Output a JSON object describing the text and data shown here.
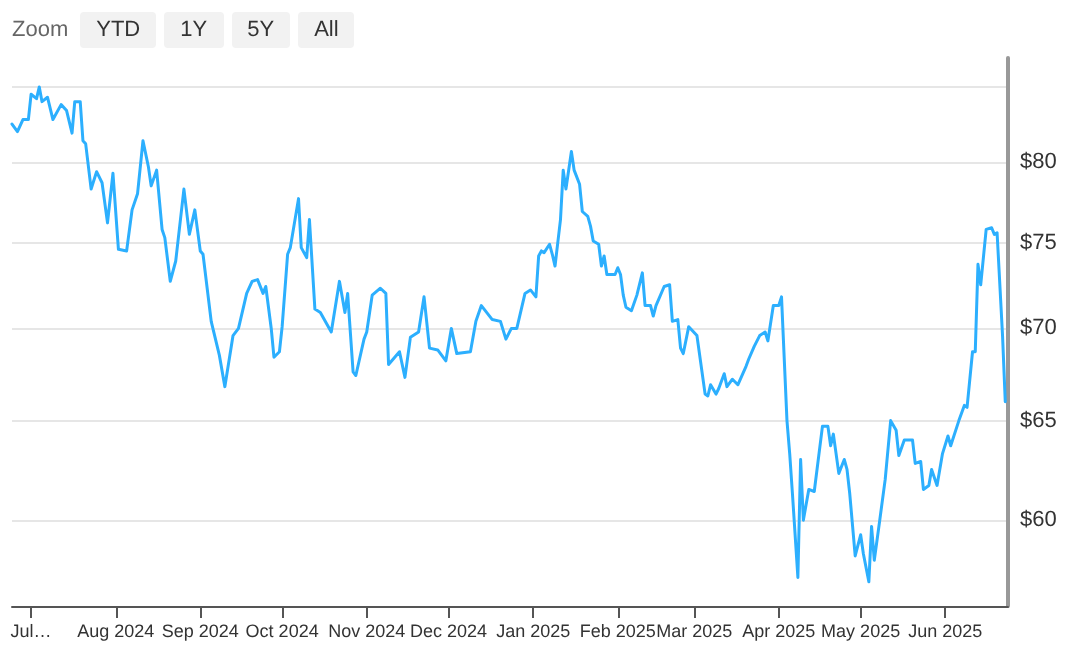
{
  "chart_data": {
    "type": "line",
    "annotations": [
      "Zoom",
      "YTD",
      "1Y",
      "5Y",
      "All"
    ],
    "x": [
      "2024-06-24",
      "2024-06-26",
      "2024-06-28",
      "2024-06-30",
      "2024-07-01",
      "2024-07-03",
      "2024-07-04",
      "2024-07-05",
      "2024-07-07",
      "2024-07-09",
      "2024-07-12",
      "2024-07-14",
      "2024-07-16",
      "2024-07-17",
      "2024-07-19",
      "2024-07-20",
      "2024-07-21",
      "2024-07-23",
      "2024-07-25",
      "2024-07-27",
      "2024-07-29",
      "2024-07-31",
      "2024-08-02",
      "2024-08-05",
      "2024-08-07",
      "2024-08-09",
      "2024-08-11",
      "2024-08-13",
      "2024-08-14",
      "2024-08-16",
      "2024-08-18",
      "2024-08-19",
      "2024-08-21",
      "2024-08-23",
      "2024-08-26",
      "2024-08-28",
      "2024-08-30",
      "2024-09-01",
      "2024-09-02",
      "2024-09-05",
      "2024-09-08",
      "2024-09-10",
      "2024-09-13",
      "2024-09-15",
      "2024-09-18",
      "2024-09-20",
      "2024-09-22",
      "2024-09-24",
      "2024-09-25",
      "2024-09-27",
      "2024-09-28",
      "2024-09-30",
      "2024-10-01",
      "2024-10-03",
      "2024-10-04",
      "2024-10-07",
      "2024-10-08",
      "2024-10-10",
      "2024-10-11",
      "2024-10-13",
      "2024-10-15",
      "2024-10-19",
      "2024-10-22",
      "2024-10-24",
      "2024-10-25",
      "2024-10-27",
      "2024-10-28",
      "2024-10-31",
      "2024-11-01",
      "2024-11-03",
      "2024-11-06",
      "2024-11-08",
      "2024-11-09",
      "2024-11-13",
      "2024-11-15",
      "2024-11-17",
      "2024-11-20",
      "2024-11-22",
      "2024-11-24",
      "2024-11-27",
      "2024-11-30",
      "2024-12-02",
      "2024-12-04",
      "2024-12-09",
      "2024-12-11",
      "2024-12-13",
      "2024-12-17",
      "2024-12-20",
      "2024-12-22",
      "2024-12-24",
      "2024-12-26",
      "2024-12-29",
      "2024-12-31",
      "2025-01-02",
      "2025-01-03",
      "2025-01-04",
      "2025-01-05",
      "2025-01-07",
      "2025-01-08",
      "2025-01-09",
      "2025-01-11",
      "2025-01-12",
      "2025-01-13",
      "2025-01-15",
      "2025-01-16",
      "2025-01-18",
      "2025-01-19",
      "2025-01-21",
      "2025-01-22",
      "2025-01-23",
      "2025-01-25",
      "2025-01-26",
      "2025-01-27",
      "2025-01-28",
      "2025-01-31",
      "2025-02-01",
      "2025-02-02",
      "2025-02-03",
      "2025-02-04",
      "2025-02-06",
      "2025-02-08",
      "2025-02-10",
      "2025-02-11",
      "2025-02-13",
      "2025-02-14",
      "2025-02-15",
      "2025-02-18",
      "2025-02-20",
      "2025-02-21",
      "2025-02-23",
      "2025-02-24",
      "2025-02-25",
      "2025-02-27",
      "2025-03-02",
      "2025-03-05",
      "2025-03-06",
      "2025-03-07",
      "2025-03-09",
      "2025-03-10",
      "2025-03-12",
      "2025-03-13",
      "2025-03-15",
      "2025-03-17",
      "2025-03-20",
      "2025-03-21",
      "2025-03-23",
      "2025-03-25",
      "2025-03-27",
      "2025-03-28",
      "2025-03-30",
      "2025-04-01",
      "2025-04-02",
      "2025-04-04",
      "2025-04-05",
      "2025-04-06",
      "2025-04-08",
      "2025-04-09",
      "2025-04-10",
      "2025-04-12",
      "2025-04-14",
      "2025-04-17",
      "2025-04-19",
      "2025-04-20",
      "2025-04-21",
      "2025-04-23",
      "2025-04-25",
      "2025-04-26",
      "2025-04-27",
      "2025-04-29",
      "2025-05-01",
      "2025-05-02",
      "2025-05-04",
      "2025-05-05",
      "2025-05-06",
      "2025-05-08",
      "2025-05-10",
      "2025-05-12",
      "2025-05-14",
      "2025-05-15",
      "2025-05-17",
      "2025-05-20",
      "2025-05-21",
      "2025-05-23",
      "2025-05-24",
      "2025-05-26",
      "2025-05-27",
      "2025-05-29",
      "2025-05-31",
      "2025-06-02",
      "2025-06-03",
      "2025-06-06",
      "2025-06-08",
      "2025-06-09",
      "2025-06-11",
      "2025-06-12",
      "2025-06-13",
      "2025-06-14",
      "2025-06-16",
      "2025-06-18",
      "2025-06-19",
      "2025-06-20",
      "2025-06-22",
      "2025-06-23"
    ],
    "series": [
      {
        "color": "#2caffe",
        "values": [
          82.5,
          82.0,
          82.8,
          82.8,
          84.5,
          84.2,
          85.0,
          84.0,
          84.3,
          82.8,
          83.8,
          83.4,
          81.9,
          84.0,
          84.0,
          81.4,
          81.2,
          78.3,
          79.4,
          78.7,
          76.2,
          79.3,
          74.6,
          74.5,
          77.0,
          78.0,
          81.4,
          79.7,
          78.5,
          79.5,
          75.8,
          75.3,
          72.7,
          73.9,
          78.3,
          75.5,
          77.0,
          74.5,
          74.3,
          70.4,
          68.5,
          66.8,
          69.6,
          70.0,
          72.0,
          72.7,
          72.8,
          72.0,
          72.4,
          70.0,
          68.4,
          68.7,
          70.1,
          74.3,
          74.7,
          77.7,
          74.7,
          74.1,
          76.4,
          71.1,
          70.9,
          69.8,
          72.7,
          70.9,
          72.0,
          67.6,
          67.4,
          69.4,
          69.8,
          71.9,
          72.3,
          72.0,
          68.0,
          68.7,
          67.3,
          69.5,
          69.8,
          71.8,
          68.9,
          68.8,
          68.2,
          70.0,
          68.6,
          68.7,
          70.4,
          71.3,
          70.5,
          70.4,
          69.4,
          70.0,
          70.0,
          72.0,
          72.2,
          71.8,
          74.2,
          74.5,
          74.4,
          74.9,
          74.3,
          73.6,
          76.4,
          79.5,
          78.3,
          80.7,
          79.5,
          78.6,
          76.9,
          76.6,
          76.0,
          75.1,
          74.9,
          73.6,
          74.2,
          73.1,
          73.1,
          73.5,
          73.1,
          71.9,
          71.2,
          71.0,
          71.9,
          73.2,
          71.3,
          71.3,
          70.7,
          71.3,
          72.4,
          72.5,
          70.4,
          70.5,
          68.9,
          68.6,
          70.1,
          69.6,
          66.4,
          66.3,
          66.9,
          66.4,
          66.7,
          67.5,
          66.8,
          67.2,
          66.9,
          67.9,
          68.3,
          69.0,
          69.6,
          69.8,
          69.3,
          71.3,
          71.3,
          71.8,
          65.0,
          63.3,
          61.3,
          57.3,
          63.0,
          60.0,
          61.5,
          61.4,
          64.7,
          64.7,
          63.7,
          64.3,
          62.3,
          63.0,
          62.5,
          61.3,
          58.3,
          59.3,
          58.4,
          57.1,
          59.7,
          58.1,
          60.0,
          62.0,
          65.0,
          64.5,
          63.2,
          64.0,
          64.0,
          62.8,
          62.9,
          61.5,
          61.7,
          62.5,
          61.7,
          63.3,
          64.2,
          63.7,
          65.0,
          65.8,
          65.7,
          68.7,
          68.7,
          73.7,
          72.5,
          75.8,
          75.9,
          75.5,
          75.6,
          69.6,
          66.0
        ]
      }
    ],
    "xlim": [
      "2024-06-24",
      "2025-06-24"
    ],
    "xticks": [
      {
        "value": "2024-07-01",
        "label": "Jul…"
      },
      {
        "value": "2024-08-01",
        "label": "Aug 2024"
      },
      {
        "value": "2024-09-01",
        "label": "Sep 2024"
      },
      {
        "value": "2024-10-01",
        "label": "Oct 2024"
      },
      {
        "value": "2024-11-01",
        "label": "Nov 2024"
      },
      {
        "value": "2024-12-01",
        "label": "Dec 2024"
      },
      {
        "value": "2025-01-01",
        "label": "Jan 2025"
      },
      {
        "value": "2025-02-01",
        "label": "Feb 2025"
      },
      {
        "value": "2025-03-01",
        "label": "Mar 2025"
      },
      {
        "value": "2025-04-01",
        "label": "Apr 2025"
      },
      {
        "value": "2025-05-01",
        "label": "May 2025"
      },
      {
        "value": "2025-06-01",
        "label": "Jun 2025"
      }
    ],
    "ylim": [
      56,
      87
    ],
    "yticks": [
      {
        "value": 60,
        "label": "$60"
      },
      {
        "value": 65,
        "label": "$65"
      },
      {
        "value": 70,
        "label": "$70"
      },
      {
        "value": 75,
        "label": "$75"
      },
      {
        "value": 80,
        "label": "$80"
      },
      {
        "value": 85,
        "label": null
      }
    ],
    "log": "y",
    "grid": "y",
    "marker": "none",
    "line_style": "solid"
  }
}
